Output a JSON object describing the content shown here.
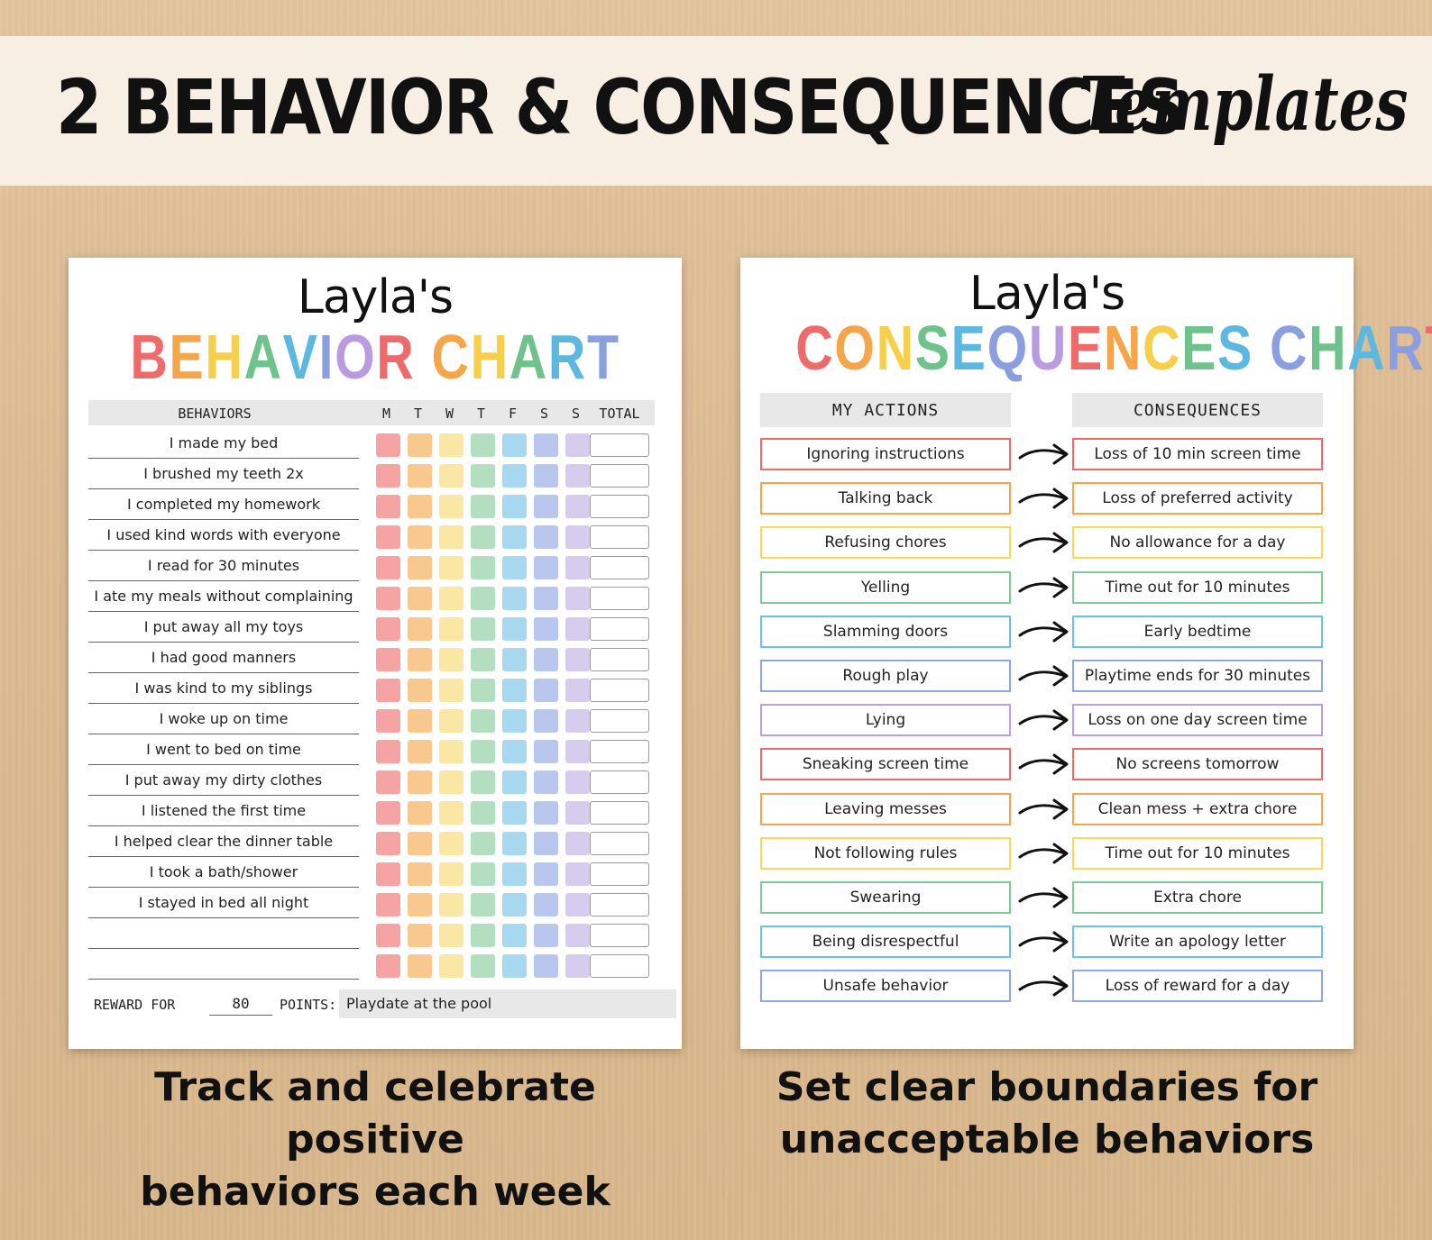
{
  "banner": {
    "title": "2 BEHAVIOR & CONSEQUENCES",
    "script": "Templates"
  },
  "behavior_chart": {
    "owner": "Layla's",
    "title_letters": [
      "B",
      "E",
      "H",
      "A",
      "V",
      "I",
      "O",
      "R",
      " ",
      "C",
      "H",
      "A",
      "R",
      "T"
    ],
    "title_colors": [
      "#ef6b6b",
      "#f5a64a",
      "#f7cf4a",
      "#6fc28b",
      "#5db8e0",
      "#8a9ee0",
      "#b99be0",
      "#ef6b6b",
      "#ffffff",
      "#f5a64a",
      "#f7cf4a",
      "#6fc28b",
      "#5db8e0",
      "#8a9ee0"
    ],
    "header": {
      "behaviors": "BEHAVIORS",
      "days": [
        "M",
        "T",
        "W",
        "T",
        "F",
        "S",
        "S"
      ],
      "total": "TOTAL"
    },
    "square_colors": [
      "#f6a3a3",
      "#f8c88e",
      "#fbe7a4",
      "#b3dfc0",
      "#a8d8f0",
      "#b9c7ee",
      "#d6ccee"
    ],
    "behaviors": [
      "I made my bed",
      "I brushed my teeth 2x",
      "I completed my homework",
      "I used kind words with everyone",
      "I read for 30 minutes",
      "I ate my meals without complaining",
      "I put away all my toys",
      "I had good manners",
      "I was kind to my siblings",
      "I woke up on time",
      "I went to bed on time",
      "I put away my dirty clothes",
      "I listened the first time",
      "I helped clear the dinner table",
      "I took a bath/shower",
      "I stayed in bed all night",
      "",
      ""
    ],
    "reward": {
      "label_for": "REWARD FOR",
      "points": "80",
      "label_points": "POINTS:",
      "reward_text": "Playdate at the pool"
    }
  },
  "consequences_chart": {
    "owner": "Layla's",
    "title_letters": [
      "C",
      "O",
      "N",
      "S",
      "E",
      "Q",
      "U",
      "E",
      "N",
      "C",
      "E",
      "S",
      " ",
      "C",
      "H",
      "A",
      "R",
      "T"
    ],
    "title_colors": [
      "#ef6b6b",
      "#f5a64a",
      "#f7cf4a",
      "#6fc28b",
      "#5db8e0",
      "#8a9ee0",
      "#b99be0",
      "#ef6b6b",
      "#f5a64a",
      "#f7cf4a",
      "#6fc28b",
      "#5db8e0",
      "#ffffff",
      "#8a9ee0",
      "#6fc28b",
      "#5db8e0",
      "#8a9ee0",
      "#ef6b6b"
    ],
    "header_actions": "MY ACTIONS",
    "header_consequences": "CONSEQUENCES",
    "rows": [
      {
        "action": "Ignoring instructions",
        "consequence": "Loss of 10 min screen time",
        "color": "#ef6b6b"
      },
      {
        "action": "Talking back",
        "consequence": "Loss of preferred activity",
        "color": "#f5a64a"
      },
      {
        "action": "Refusing chores",
        "consequence": "No allowance for a day",
        "color": "#f7d857"
      },
      {
        "action": "Yelling",
        "consequence": "Time out for 10 minutes",
        "color": "#7dcb98"
      },
      {
        "action": "Slamming doors",
        "consequence": "Early bedtime",
        "color": "#6cc2e6"
      },
      {
        "action": "Rough play",
        "consequence": "Playtime ends for 30 minutes",
        "color": "#8ea6e6"
      },
      {
        "action": "Lying",
        "consequence": "Loss on one day screen time",
        "color": "#b9a0e4"
      },
      {
        "action": "Sneaking screen time",
        "consequence": "No screens tomorrow",
        "color": "#ef6b6b"
      },
      {
        "action": "Leaving messes",
        "consequence": "Clean mess + extra chore",
        "color": "#f5a64a"
      },
      {
        "action": "Not following rules",
        "consequence": "Time out for 10 minutes",
        "color": "#f7d857"
      },
      {
        "action": "Swearing",
        "consequence": "Extra chore",
        "color": "#7dcb98"
      },
      {
        "action": "Being disrespectful",
        "consequence": "Write an apology letter",
        "color": "#6cc2e6"
      },
      {
        "action": "Unsafe behavior",
        "consequence": "Loss of reward for a day",
        "color": "#8ea6e6"
      }
    ]
  },
  "captions": {
    "left_line1": "Track and celebrate positive",
    "left_line2": "behaviors each week",
    "right_line1": "Set clear boundaries for",
    "right_line2": "unacceptable behaviors"
  }
}
